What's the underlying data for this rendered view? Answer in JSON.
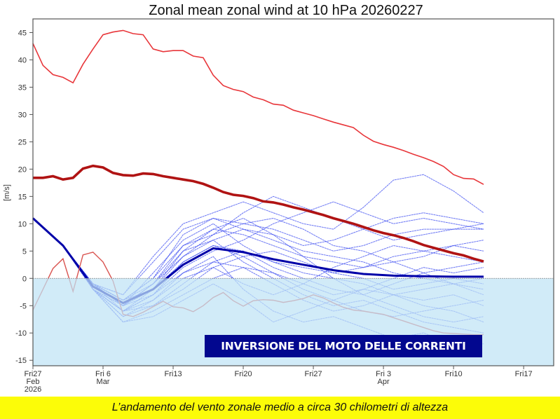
{
  "chart_data": {
    "type": "line",
    "title": "Zonal mean zonal wind at 10 hPa 20260227",
    "ylabel": "[m/s]",
    "xlabel": "",
    "ylim": [
      -16,
      47.5
    ],
    "xlim_days_from_start": [
      0,
      52
    ],
    "x_start_date": "2026-02-27",
    "yticks": [
      -15,
      -10,
      -5,
      0,
      5,
      10,
      15,
      20,
      25,
      30,
      35,
      40,
      45
    ],
    "xticks": [
      {
        "day": 0,
        "lines": [
          "Fri27",
          "Feb",
          "2026"
        ]
      },
      {
        "day": 7,
        "lines": [
          "Fri 6",
          "Mar"
        ]
      },
      {
        "day": 14,
        "lines": [
          "Fri13"
        ]
      },
      {
        "day": 21,
        "lines": [
          "Fri20"
        ]
      },
      {
        "day": 28,
        "lines": [
          "Fri27"
        ]
      },
      {
        "day": 35,
        "lines": [
          "Fri 3",
          "Apr"
        ]
      },
      {
        "day": 42,
        "lines": [
          "Fri10"
        ]
      },
      {
        "day": 49,
        "lines": [
          "Fri17"
        ]
      }
    ],
    "grid": false,
    "shaded_region": {
      "ymin": -16,
      "ymax": 0,
      "color": "#bfe3f5"
    },
    "colors": {
      "max": "#e8363a",
      "mean_climate": "#b01313",
      "min": "#d9534f",
      "members": "#3848f0",
      "ensemble_mean": "#0000a8"
    },
    "upper_red": [
      43,
      39,
      37.3,
      36.8,
      35.8,
      39.2,
      42,
      44.6,
      45.1,
      45.4,
      44.8,
      44.6,
      42,
      41.5,
      41.7,
      41.7,
      40.7,
      40.4,
      37.2,
      35.3,
      34.6,
      34.2,
      33.2,
      32.7,
      31.9,
      31.7,
      30.8,
      30.3,
      29.8,
      29.2,
      28.6,
      28.1,
      27.6,
      26.2,
      25.1,
      24.5,
      24.0,
      23.4,
      22.7,
      22.1,
      21.4,
      20.5,
      19.0,
      18.3,
      18.2,
      17.2
    ],
    "thick_red": [
      18.4,
      18.4,
      18.7,
      18.1,
      18.4,
      20.1,
      20.6,
      20.3,
      19.3,
      18.9,
      18.8,
      19.2,
      19.1,
      18.7,
      18.4,
      18.1,
      17.8,
      17.3,
      16.6,
      15.8,
      15.3,
      15.1,
      14.7,
      14.1,
      13.9,
      13.5,
      13.0,
      12.6,
      12.1,
      11.6,
      11.0,
      10.5,
      10.0,
      9.4,
      8.8,
      8.3,
      7.9,
      7.4,
      6.8,
      6.1,
      5.6,
      5.1,
      4.6,
      4.2,
      3.6,
      3.1
    ],
    "lower_red": [
      -5.8,
      -2,
      1.8,
      3.6,
      -2.4,
      4.3,
      4.8,
      3,
      -0.5,
      -6.6,
      -7.0,
      -6.2,
      -5.2,
      -4.2,
      -5.2,
      -5.4,
      -6.1,
      -5.0,
      -3.5,
      -2.6,
      -4.1,
      -5.1,
      -4.1,
      -3.9,
      -4.0,
      -4.4,
      -4.1,
      -3.7,
      -3.0,
      -3.6,
      -4.5,
      -5.3,
      -5.8,
      -6.0,
      -6.3,
      -6.6,
      -7.2,
      -7.8,
      -8.4,
      -9.0,
      -9.6,
      -10.0,
      -10.1,
      -10.2,
      -10.3,
      -10.3
    ],
    "member_days": [
      0,
      3,
      6,
      9,
      12,
      15,
      18,
      21,
      24,
      27,
      30,
      33,
      36,
      39,
      42,
      45
    ],
    "ensemble_mean": [
      11,
      6,
      -1.5,
      -4.5,
      -2,
      2.5,
      5.5,
      4.8,
      3.5,
      2.5,
      1.5,
      0.8,
      0.5,
      0.4,
      0.3,
      0.3
    ],
    "members": [
      [
        11,
        6,
        -2,
        -5,
        -1,
        6,
        9,
        8,
        6,
        4,
        3,
        2,
        4,
        5,
        6,
        7
      ],
      [
        11,
        6,
        -1,
        -4,
        0,
        8,
        11,
        10,
        9,
        7,
        5,
        6,
        8,
        9,
        9,
        10
      ],
      [
        11,
        6,
        -2,
        -6,
        -3,
        3,
        6,
        5,
        2,
        0,
        -2,
        -3,
        -1,
        1,
        2,
        3
      ],
      [
        11,
        6,
        -1,
        -3,
        4,
        10,
        12,
        14,
        12,
        10,
        9,
        13,
        18,
        19,
        16,
        12
      ],
      [
        11,
        6,
        -2,
        -7,
        -5,
        -1,
        3,
        2,
        -1,
        -4,
        -6,
        -5,
        -3,
        -2,
        -1,
        0
      ],
      [
        11,
        6,
        -1,
        -5,
        -2,
        4,
        8,
        12,
        15,
        13,
        11,
        9,
        7,
        8,
        9,
        9
      ],
      [
        11,
        6,
        -2,
        -6,
        -4,
        1,
        4,
        -2,
        -6,
        -8,
        -7,
        -9,
        -11,
        -10,
        -12,
        -12
      ],
      [
        11,
        6,
        -1,
        -4,
        -1,
        5,
        7,
        9,
        7,
        5,
        4,
        3,
        1,
        0,
        -1,
        -2
      ],
      [
        11,
        6,
        -2,
        -8,
        -6,
        -3,
        0,
        2,
        1,
        -1,
        -3,
        -2,
        0,
        2,
        1,
        2
      ],
      [
        11,
        6,
        -1,
        -5,
        1,
        7,
        10,
        6,
        3,
        1,
        0,
        -1,
        -3,
        -4,
        -3,
        -5
      ],
      [
        11,
        6,
        -2,
        -6,
        -3,
        2,
        5,
        7,
        10,
        12,
        14,
        12,
        10,
        11,
        10,
        9
      ],
      [
        11,
        6,
        -1,
        -4,
        -2,
        3,
        6,
        4,
        1,
        -2,
        -4,
        -6,
        -7,
        -6,
        -5,
        -4
      ],
      [
        11,
        6,
        -2,
        -7,
        -4,
        0,
        2,
        -1,
        -3,
        -1,
        2,
        4,
        6,
        5,
        4,
        3
      ],
      [
        11,
        6,
        -1,
        -3,
        3,
        9,
        11,
        9,
        8,
        6,
        7,
        9,
        11,
        12,
        11,
        10
      ],
      [
        11,
        6,
        -2,
        -5,
        -3,
        1,
        3,
        5,
        3,
        2,
        1,
        0,
        -2,
        -1,
        0,
        -1
      ],
      [
        11,
        6,
        -1,
        -6,
        -2,
        5,
        9,
        11,
        8,
        4,
        0,
        -3,
        -5,
        -7,
        -8,
        -7
      ],
      [
        11,
        6,
        -2,
        -8,
        -7,
        -4,
        -1,
        -4,
        -8,
        -6,
        -4,
        -2,
        -3,
        -5,
        -6,
        -8
      ],
      [
        11,
        6,
        -1,
        -4,
        0,
        6,
        8,
        10,
        11,
        9,
        6,
        5,
        3,
        4,
        6,
        5
      ],
      [
        11,
        6,
        -2,
        -6,
        -5,
        -2,
        2,
        4,
        5,
        3,
        1,
        2,
        3,
        1,
        -1,
        -3
      ],
      [
        11,
        6,
        -1,
        -5,
        -1,
        4,
        7,
        3,
        0,
        -3,
        -5,
        -4,
        -6,
        -8,
        -9,
        -10
      ]
    ]
  },
  "annotation": {
    "label": "INVERSIONE DEL MOTO DELLE CORRENTI",
    "background": "#02078f"
  },
  "caption": {
    "text": "L’andamento del vento zonale medio a circa 30 chilometri di altezza",
    "background": "#fcfc08"
  }
}
